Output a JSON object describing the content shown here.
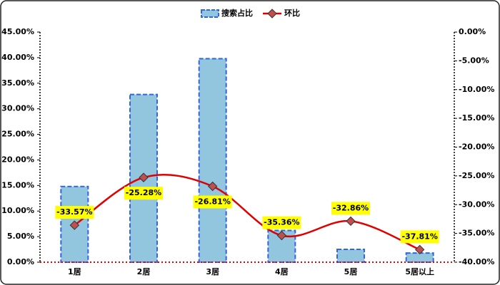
{
  "chart_data": {
    "type": "combo",
    "categories": [
      "1居",
      "2居",
      "3居",
      "4居",
      "5居",
      "5居以上"
    ],
    "series": [
      {
        "name": "搜索占比",
        "type": "bar",
        "color": "#92c5de",
        "values": [
          14.8,
          32.8,
          39.8,
          6.2,
          2.5,
          1.8
        ]
      },
      {
        "name": "环比",
        "type": "line",
        "axis": "y2",
        "color": "#e00000",
        "values": [
          -33.57,
          -25.28,
          -26.81,
          -35.36,
          -32.86,
          -37.81
        ],
        "value_labels": [
          "-33.57%",
          "-25.28%",
          "-26.81%",
          "-35.36%",
          "-32.86%",
          "-37.81%"
        ]
      }
    ],
    "ylim": [
      0,
      45
    ],
    "yticks": [
      {
        "value": 0,
        "label": "0.00%"
      },
      {
        "value": 5,
        "label": "5.00%"
      },
      {
        "value": 10,
        "label": "10.00%"
      },
      {
        "value": 15,
        "label": "15.00%"
      },
      {
        "value": 20,
        "label": "20.00%"
      },
      {
        "value": 25,
        "label": "25.00%"
      },
      {
        "value": 30,
        "label": "30.00%"
      },
      {
        "value": 35,
        "label": "35.00%"
      },
      {
        "value": 40,
        "label": "40.00%"
      },
      {
        "value": 45,
        "label": "45.00%"
      }
    ],
    "y2lim": [
      -40,
      0
    ],
    "y2ticks": [
      {
        "value": 0,
        "label": "0.00%"
      },
      {
        "value": -5,
        "label": "-5.00%"
      },
      {
        "value": -10,
        "label": "-10.00%"
      },
      {
        "value": -15,
        "label": "-15.00%"
      },
      {
        "value": -20,
        "label": "-20.00%"
      },
      {
        "value": -25,
        "label": "-25.00%"
      },
      {
        "value": -30,
        "label": "-30.00%"
      },
      {
        "value": -35,
        "label": "-35.00%"
      },
      {
        "value": -40,
        "label": "-40.00%"
      }
    ],
    "grid": false,
    "legend": "top"
  }
}
